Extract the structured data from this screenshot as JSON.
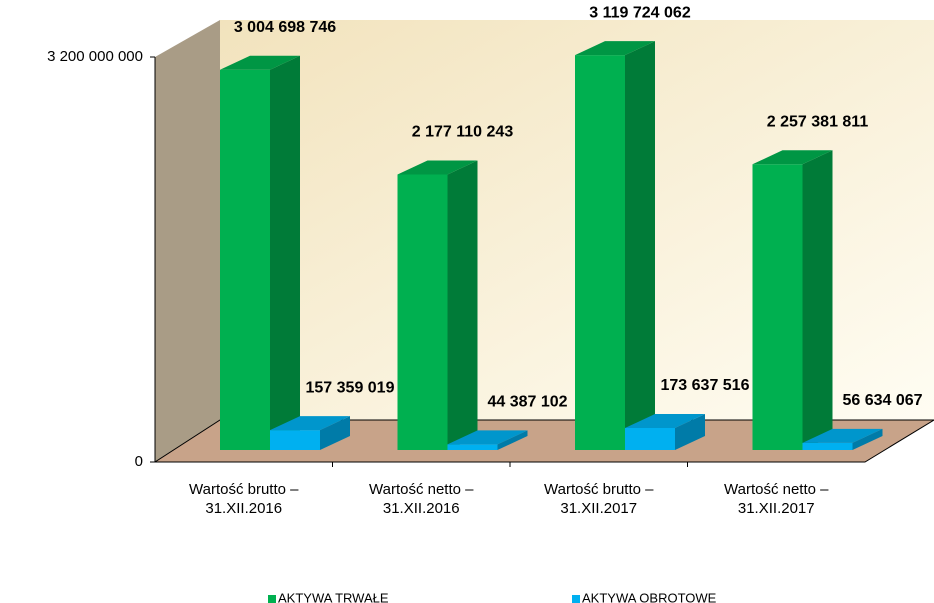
{
  "chart_data": {
    "type": "bar3d",
    "categories": [
      "Wartość brutto – 31.XII.2016",
      "Wartość netto – 31.XII.2016",
      "Wartość brutto – 31.XII.2017",
      "Wartość netto – 31.XII.2017"
    ],
    "series": [
      {
        "name": "AKTYWA TRWAŁE",
        "color": "#00b050",
        "values": [
          3004698746,
          2177110243,
          3119724062,
          2257381811
        ],
        "value_labels": [
          "3 004 698 746",
          "2 177 110 243",
          "3 119 724 062",
          "2 257 381 811"
        ]
      },
      {
        "name": "AKTYWA OBROTOWE",
        "color": "#00b0f0",
        "values": [
          157359019,
          44387102,
          173637516,
          56634067
        ],
        "value_labels": [
          "157 359 019",
          "44 387 102",
          "173 637 516",
          "56 634 067"
        ]
      }
    ],
    "ylim": [
      0,
      3200000000
    ],
    "yticks": [
      0,
      {
        "value": 3200000000,
        "label": "3 200 000 000"
      }
    ],
    "legend": "bottom"
  }
}
